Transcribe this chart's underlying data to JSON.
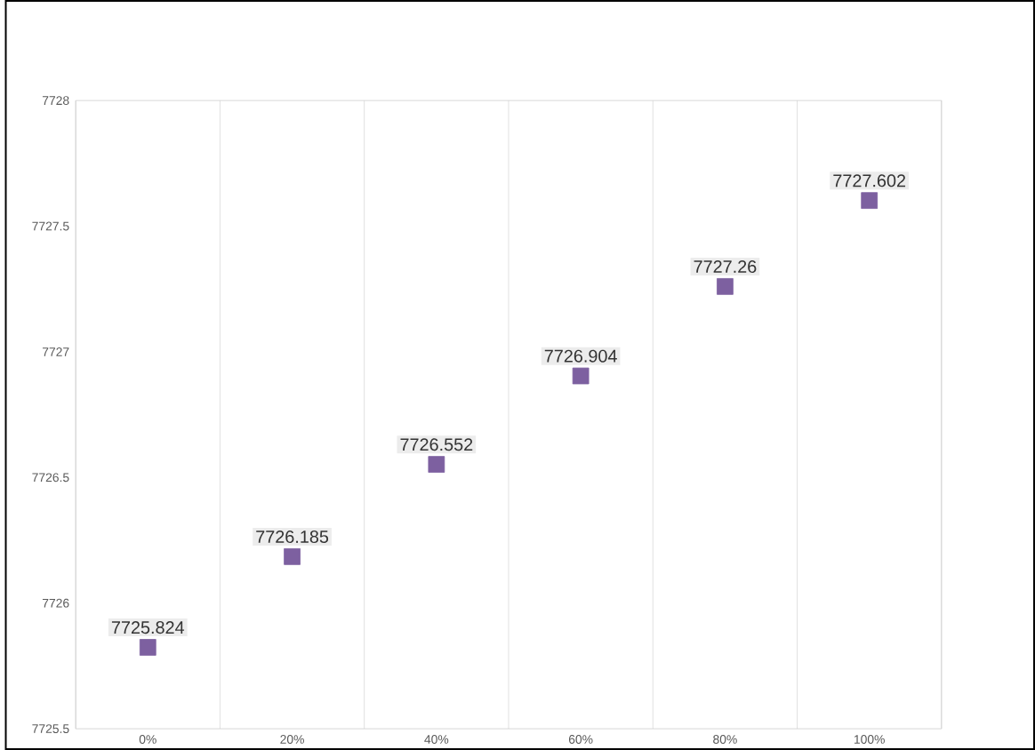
{
  "chart_data": {
    "type": "scatter",
    "categories": [
      "0%",
      "20%",
      "40%",
      "60%",
      "80%",
      "100%"
    ],
    "values": [
      7725.824,
      7726.185,
      7726.552,
      7726.904,
      7727.26,
      7727.602
    ],
    "color": "#7d60a0",
    "marker": "square",
    "data_labels": true,
    "grid": "x",
    "ylim": [
      7725.5,
      7728
    ],
    "yticks": [
      7725.5,
      7726,
      7726.5,
      7727,
      7727.5,
      7728
    ]
  }
}
